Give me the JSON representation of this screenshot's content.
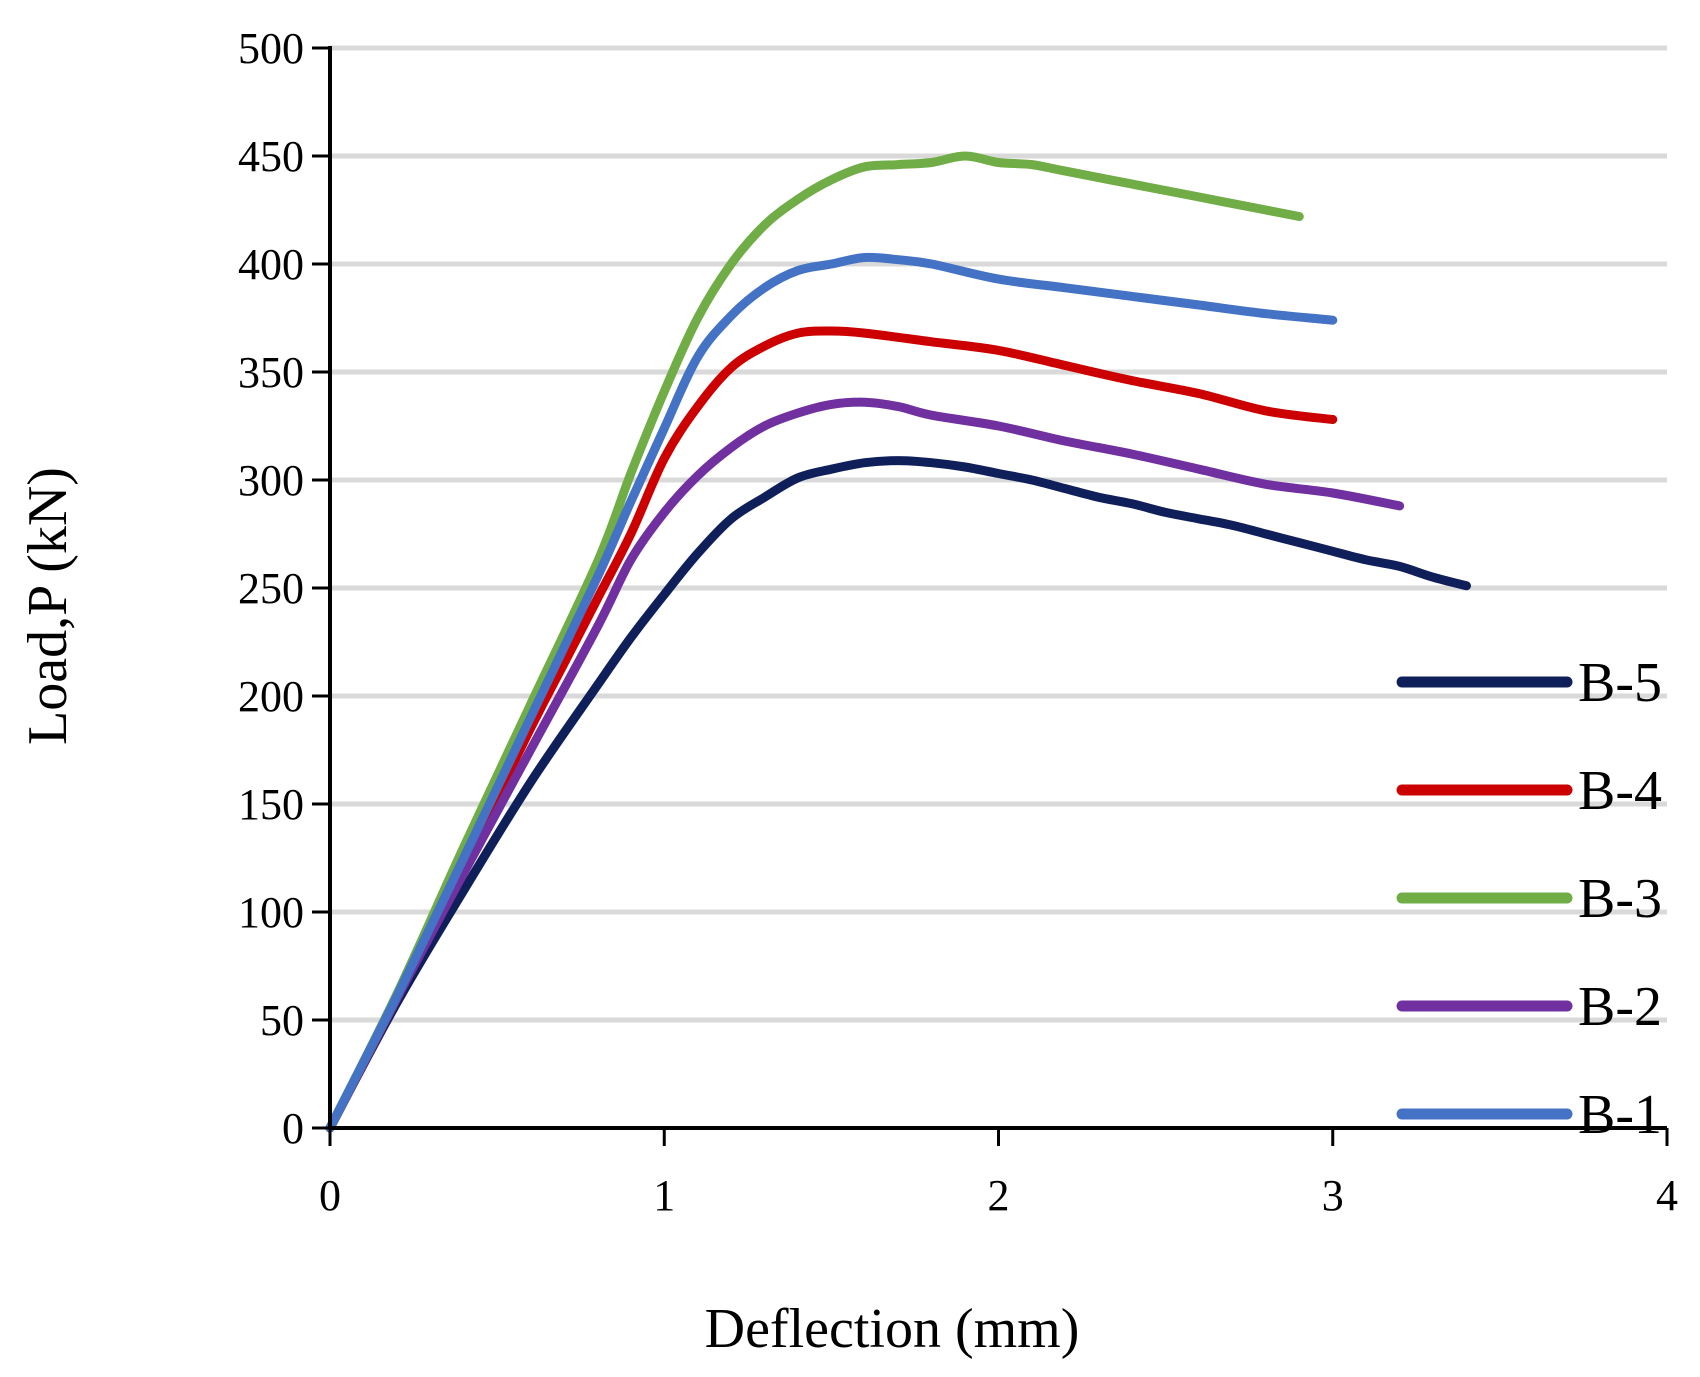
{
  "chart_data": {
    "type": "line",
    "title": "",
    "xlabel": "Deflection (mm)",
    "ylabel": "Load,P (kN)",
    "xlim": [
      0,
      4
    ],
    "ylim": [
      0,
      500
    ],
    "xticks": [
      0,
      1,
      2,
      3,
      4
    ],
    "yticks": [
      0,
      50,
      100,
      150,
      200,
      250,
      300,
      350,
      400,
      450,
      500
    ],
    "grid": "horizontal",
    "legend_position": "right",
    "series": [
      {
        "name": "B-5",
        "color": "#0f1f5a",
        "x": [
          0,
          0.2,
          0.4,
          0.6,
          0.8,
          0.9,
          1.0,
          1.1,
          1.2,
          1.3,
          1.4,
          1.5,
          1.6,
          1.7,
          1.8,
          1.9,
          2.0,
          2.1,
          2.2,
          2.3,
          2.4,
          2.5,
          2.6,
          2.7,
          2.8,
          2.9,
          3.0,
          3.1,
          3.2,
          3.3,
          3.4
        ],
        "y": [
          0,
          58,
          110,
          160,
          205,
          227,
          247,
          266,
          282,
          292,
          301,
          305,
          308,
          309,
          308,
          306,
          303,
          300,
          296,
          292,
          289,
          285,
          282,
          279,
          275,
          271,
          267,
          263,
          260,
          255,
          251
        ]
      },
      {
        "name": "B-4",
        "color": "#cc0000",
        "x": [
          0,
          0.2,
          0.4,
          0.6,
          0.7,
          0.8,
          0.9,
          1.0,
          1.1,
          1.2,
          1.3,
          1.4,
          1.5,
          1.6,
          1.8,
          2.0,
          2.2,
          2.4,
          2.6,
          2.8,
          3.0
        ],
        "y": [
          0,
          60,
          122,
          185,
          215,
          245,
          275,
          310,
          334,
          352,
          362,
          368,
          369,
          368,
          364,
          360,
          353,
          346,
          340,
          332,
          328
        ]
      },
      {
        "name": "B-3",
        "color": "#70ad47",
        "x": [
          0,
          0.2,
          0.4,
          0.6,
          0.8,
          0.9,
          1.0,
          1.1,
          1.2,
          1.3,
          1.4,
          1.5,
          1.6,
          1.7,
          1.8,
          1.9,
          2.0,
          2.1,
          2.2,
          2.4,
          2.6,
          2.8,
          2.9
        ],
        "y": [
          0,
          62,
          130,
          196,
          262,
          303,
          341,
          375,
          400,
          418,
          430,
          439,
          445,
          446,
          447,
          450,
          447,
          446,
          443,
          437,
          431,
          425,
          422
        ]
      },
      {
        "name": "B-2",
        "color": "#7030a0",
        "x": [
          0,
          0.2,
          0.4,
          0.6,
          0.8,
          0.9,
          1.0,
          1.1,
          1.2,
          1.3,
          1.4,
          1.5,
          1.6,
          1.7,
          1.8,
          2.0,
          2.2,
          2.4,
          2.6,
          2.8,
          3.0,
          3.2
        ],
        "y": [
          0,
          60,
          118,
          175,
          232,
          263,
          285,
          302,
          315,
          325,
          331,
          335,
          336,
          334,
          330,
          325,
          318,
          312,
          305,
          298,
          294,
          288
        ]
      },
      {
        "name": "B-1",
        "color": "#4472c4",
        "x": [
          0,
          0.2,
          0.4,
          0.6,
          0.8,
          0.9,
          1.0,
          1.1,
          1.2,
          1.3,
          1.4,
          1.5,
          1.6,
          1.7,
          1.8,
          2.0,
          2.2,
          2.4,
          2.6,
          2.8,
          3.0
        ],
        "y": [
          0,
          61,
          125,
          190,
          255,
          290,
          324,
          357,
          376,
          389,
          397,
          400,
          403,
          402,
          400,
          393,
          389,
          385,
          381,
          377,
          374
        ]
      }
    ]
  }
}
